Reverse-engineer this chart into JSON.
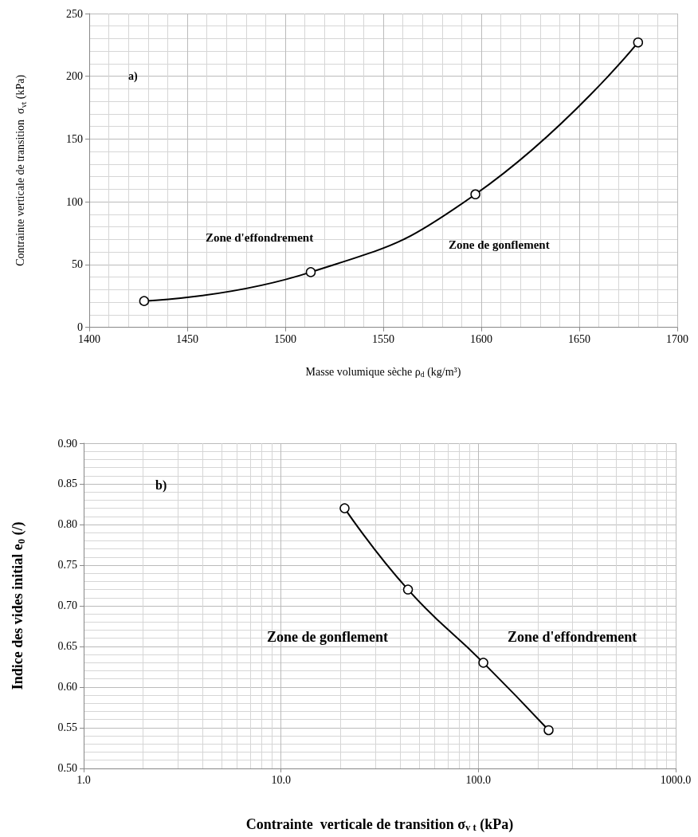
{
  "chart_data": [
    {
      "type": "line",
      "xlabel": "Masse volumique sèche ρ$_{d}$ (kg/m³)",
      "ylabel": "Contrainte verticale de transition  σ$_{vt}$ (kPa)",
      "annotations": [
        "a)",
        "Zone d'effondrement",
        "Zone de gonflement"
      ],
      "x": [
        1428,
        1513,
        1597,
        1680
      ],
      "series": [
        {
          "color": "#000000",
          "values": [
            21,
            44,
            106,
            227
          ]
        }
      ],
      "xlim": [
        1400,
        1700
      ],
      "xticks": [
        1400,
        1450,
        1500,
        1550,
        1600,
        1650,
        1700
      ],
      "ylim": [
        0,
        250
      ],
      "yticks": [
        0,
        50,
        100,
        150,
        200,
        250
      ],
      "grid": true,
      "marker": "circle",
      "line_style": "solid"
    },
    {
      "type": "line",
      "xlabel": "Contrainte  verticale de transition σ$_{v t}$ (kPa)",
      "ylabel": "Indice des vides initial e$_{0}$ (/)",
      "annotations": [
        "b)",
        "Zone de gonflement",
        "Zone d'effondrement"
      ],
      "x": [
        21,
        44,
        106,
        227
      ],
      "series": [
        {
          "color": "#000000",
          "values": [
            0.82,
            0.72,
            0.63,
            0.547
          ]
        }
      ],
      "log": "x",
      "xlim": [
        1,
        1000
      ],
      "xticks": [
        {
          "value": 1,
          "label": "1.0"
        },
        {
          "value": 10,
          "label": "10.0"
        },
        {
          "value": 100,
          "label": "100.0"
        },
        {
          "value": 1000,
          "label": "1000.0"
        }
      ],
      "ylim": [
        0.5,
        0.9
      ],
      "yticks": [
        {
          "value": 0.5,
          "label": "0.50"
        },
        {
          "value": 0.55,
          "label": "0.55"
        },
        {
          "value": 0.6,
          "label": "0.60"
        },
        {
          "value": 0.65,
          "label": "0.65"
        },
        {
          "value": 0.7,
          "label": "0.70"
        },
        {
          "value": 0.75,
          "label": "0.75"
        },
        {
          "value": 0.8,
          "label": "0.80"
        },
        {
          "value": 0.85,
          "label": "0.85"
        },
        {
          "value": 0.9,
          "label": "0.90"
        }
      ],
      "grid": true,
      "marker": "circle",
      "line_style": "solid"
    }
  ]
}
